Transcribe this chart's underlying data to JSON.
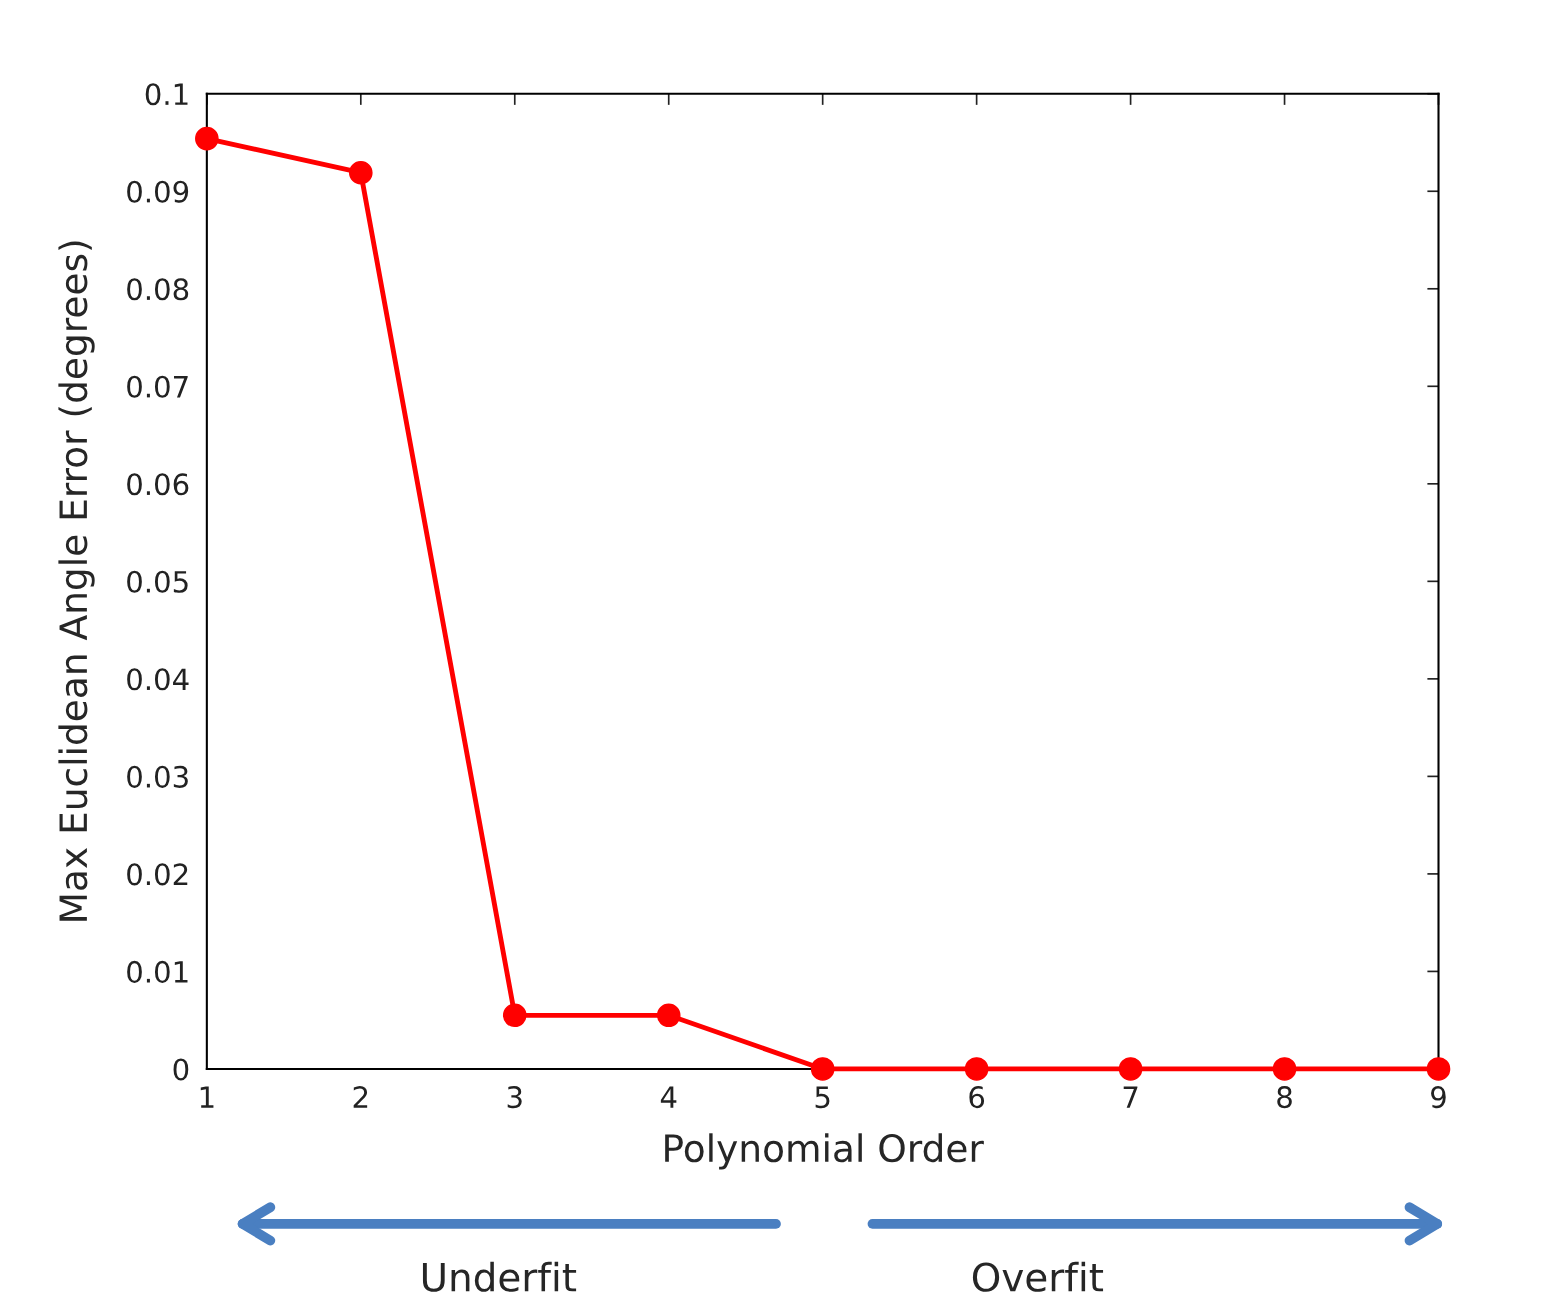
{
  "chart_data": {
    "type": "line",
    "xlabel": "Polynomial Order",
    "ylabel": "Max Euclidean Angle Error (degrees)",
    "x": [
      1,
      2,
      3,
      4,
      5,
      6,
      7,
      8,
      9
    ],
    "series": [
      {
        "color": "#ff0000",
        "values": [
          0.0954,
          0.0919,
          0.0055,
          0.0055,
          0,
          0,
          0,
          0,
          0
        ]
      }
    ],
    "xlim": [
      1,
      9
    ],
    "xticks": [
      1,
      2,
      3,
      4,
      5,
      6,
      7,
      8,
      9
    ],
    "ylim": [
      0,
      0.1
    ],
    "yticks": [
      0,
      0.01,
      0.02,
      0.03,
      0.04,
      0.05,
      0.06,
      0.07,
      0.08,
      0.09,
      0.1
    ],
    "grid": false,
    "marker": "circle",
    "line_style": "solid",
    "annotations": [
      "Underfit",
      "Overfit"
    ]
  }
}
